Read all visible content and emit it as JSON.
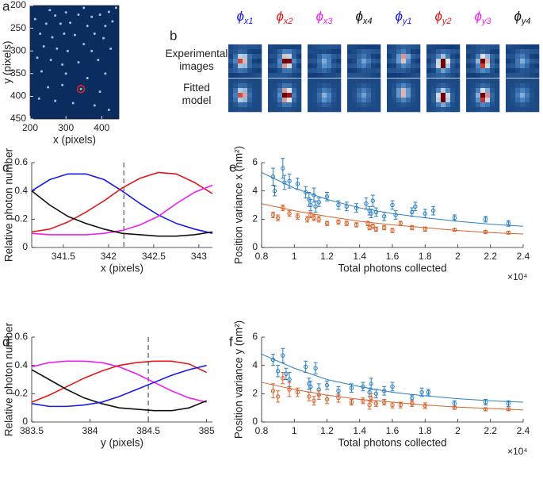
{
  "chart_data": [
    {
      "type": "image",
      "label": "a",
      "xlabel": "x (pixels)",
      "ylabel": "y (pixels)",
      "xlim": [
        200,
        448
      ],
      "ylim": [
        450,
        200
      ],
      "xticks": [
        200,
        300,
        400
      ],
      "yticks": [
        200,
        250,
        300,
        350,
        400,
        450
      ],
      "background": "#0b2c5f",
      "spot_color": "#a8d8f0",
      "spots": {
        "x": [
          255,
          270,
          300,
          335,
          350,
          372,
          395,
          420,
          440,
          214,
          245,
          285,
          312,
          360,
          410,
          430,
          228,
          262,
          295,
          325,
          380,
          405,
          238,
          275,
          305,
          350,
          372,
          425,
          220,
          258,
          290,
          335,
          390,
          232,
          300,
          360,
          410,
          250,
          290,
          342,
          395,
          225,
          270,
          320,
          380,
          420
        ],
        "y": [
          210,
          222,
          215,
          220,
          205,
          225,
          220,
          214,
          205,
          230,
          240,
          240,
          238,
          245,
          245,
          235,
          262,
          270,
          262,
          265,
          262,
          272,
          290,
          295,
          300,
          285,
          300,
          295,
          315,
          320,
          330,
          325,
          320,
          345,
          350,
          360,
          350,
          380,
          375,
          384,
          390,
          405,
          410,
          415,
          420,
          430
        ]
      },
      "marker": {
        "x": 342,
        "y": 384,
        "color": "#ff2020"
      }
    },
    {
      "type": "image-grid",
      "label": "b",
      "columns": [
        {
          "symbol": "ϕ",
          "sub": "x1",
          "color": "#1a1ae6"
        },
        {
          "symbol": "ϕ",
          "sub": "x2",
          "color": "#e01a1a"
        },
        {
          "symbol": "ϕ",
          "sub": "x3",
          "color": "#ee20ee"
        },
        {
          "symbol": "ϕ",
          "sub": "x4",
          "color": "#111111"
        },
        {
          "symbol": "ϕ",
          "sub": "y1",
          "color": "#1a1ae6"
        },
        {
          "symbol": "ϕ",
          "sub": "y2",
          "color": "#e01a1a"
        },
        {
          "symbol": "ϕ",
          "sub": "y3",
          "color": "#ee20ee"
        },
        {
          "symbol": "ϕ",
          "sub": "y4",
          "color": "#111111"
        }
      ],
      "rows": [
        [
          "Experimental",
          "images"
        ],
        [
          "Fitted",
          "model"
        ]
      ]
    },
    {
      "type": "line",
      "label": "c",
      "xlabel": "x (pixels)",
      "ylabel": "Relative photon number",
      "xlim": [
        341.15,
        343.15
      ],
      "ylim": [
        0,
        0.6
      ],
      "xticks": [
        341.5,
        342,
        342.5,
        343
      ],
      "yticks": [
        0,
        0.2,
        0.4,
        0.6
      ],
      "vline": 342.17,
      "x": [
        341.15,
        341.35,
        341.55,
        341.75,
        341.95,
        342.15,
        342.35,
        342.55,
        342.75,
        342.95,
        343.15
      ],
      "series": [
        {
          "color": "#1a1ae6",
          "values": [
            0.4,
            0.48,
            0.52,
            0.52,
            0.48,
            0.4,
            0.31,
            0.23,
            0.17,
            0.13,
            0.1
          ]
        },
        {
          "color": "#e01a1a",
          "values": [
            0.11,
            0.13,
            0.18,
            0.25,
            0.33,
            0.42,
            0.49,
            0.53,
            0.52,
            0.46,
            0.38
          ]
        },
        {
          "color": "#ee20ee",
          "values": [
            0.1,
            0.09,
            0.09,
            0.09,
            0.1,
            0.12,
            0.16,
            0.22,
            0.31,
            0.39,
            0.44
          ]
        },
        {
          "color": "#111111",
          "values": [
            0.4,
            0.3,
            0.22,
            0.17,
            0.13,
            0.1,
            0.09,
            0.08,
            0.08,
            0.09,
            0.11
          ]
        }
      ]
    },
    {
      "type": "line",
      "label": "d",
      "xlabel": "y (pixels)",
      "ylabel": "Relative photon number",
      "xlim": [
        383.5,
        385.05
      ],
      "ylim": [
        0,
        0.6
      ],
      "xticks": [
        383.5,
        384,
        384.5,
        385
      ],
      "yticks": [
        0,
        0.2,
        0.4,
        0.6
      ],
      "vline": 384.5,
      "x": [
        383.5,
        383.65,
        383.8,
        383.95,
        384.1,
        384.25,
        384.4,
        384.55,
        384.7,
        384.85,
        385.0
      ],
      "series": [
        {
          "color": "#ee20ee",
          "values": [
            0.39,
            0.42,
            0.43,
            0.43,
            0.42,
            0.39,
            0.34,
            0.28,
            0.22,
            0.17,
            0.14
          ]
        },
        {
          "color": "#e01a1a",
          "values": [
            0.14,
            0.19,
            0.25,
            0.31,
            0.36,
            0.4,
            0.42,
            0.43,
            0.43,
            0.41,
            0.35
          ]
        },
        {
          "color": "#111111",
          "values": [
            0.37,
            0.3,
            0.23,
            0.17,
            0.13,
            0.1,
            0.09,
            0.08,
            0.08,
            0.1,
            0.15
          ]
        },
        {
          "color": "#1a1ae6",
          "values": [
            0.13,
            0.11,
            0.11,
            0.12,
            0.14,
            0.18,
            0.23,
            0.28,
            0.33,
            0.37,
            0.4
          ]
        }
      ]
    },
    {
      "type": "scatter",
      "label": "e",
      "xlabel": "Total photons collected",
      "ylabel": "Position variance x (nm²)",
      "x_multiplier": "×10⁴",
      "xlim": [
        0.8,
        2.4
      ],
      "ylim": [
        0,
        6
      ],
      "xticks": [
        0.8,
        1,
        1.2,
        1.4,
        1.6,
        1.8,
        2,
        2.2,
        2.4
      ],
      "yticks": [
        0,
        2,
        4,
        6
      ],
      "series": [
        {
          "mode": "points",
          "color": "#2a7fc0",
          "x": [
            0.87,
            0.93,
            0.88,
            0.94,
            0.97,
            1.02,
            1.07,
            1.09,
            1.1,
            1.12,
            1.13,
            1.15,
            1.2,
            1.27,
            1.32,
            1.38,
            1.44,
            1.46,
            1.47,
            1.48,
            1.5,
            1.55,
            1.6,
            1.62,
            1.72,
            1.74,
            1.8,
            1.85,
            1.98,
            2.17,
            2.31
          ],
          "values": [
            5.0,
            5.6,
            4.0,
            4.6,
            4.7,
            4.5,
            3.9,
            3.4,
            3.0,
            3.7,
            2.9,
            3.2,
            3.6,
            3.0,
            2.9,
            2.8,
            3.1,
            2.6,
            2.4,
            3.3,
            2.5,
            2.2,
            3.0,
            2.3,
            2.5,
            2.9,
            2.4,
            2.6,
            2.1,
            2.0,
            1.7
          ],
          "errors": [
            0.6,
            0.7,
            0.35,
            0.5,
            0.5,
            0.4,
            0.4,
            0.5,
            0.4,
            0.5,
            0.4,
            0.3,
            0.3,
            0.3,
            0.3,
            0.3,
            0.4,
            0.3,
            0.3,
            0.4,
            0.3,
            0.3,
            0.3,
            0.3,
            0.3,
            0.3,
            0.3,
            0.3,
            0.2,
            0.2,
            0.2
          ]
        },
        {
          "mode": "points",
          "color": "#d9622b",
          "x": [
            0.87,
            0.93,
            0.9,
            0.97,
            1.02,
            1.08,
            1.1,
            1.12,
            1.15,
            1.2,
            1.27,
            1.32,
            1.38,
            1.45,
            1.46,
            1.48,
            1.5,
            1.55,
            1.6,
            1.65,
            1.72,
            1.8,
            1.98,
            2.17,
            2.31
          ],
          "values": [
            2.3,
            2.8,
            2.1,
            2.4,
            2.2,
            2.0,
            2.3,
            2.1,
            2.0,
            1.7,
            1.8,
            1.7,
            1.6,
            1.7,
            1.4,
            1.5,
            1.3,
            1.4,
            1.2,
            1.7,
            1.4,
            1.3,
            1.25,
            1.1,
            1.05
          ],
          "errors": [
            0.2,
            0.2,
            0.2,
            0.2,
            0.2,
            0.2,
            0.2,
            0.2,
            0.2,
            0.15,
            0.15,
            0.15,
            0.15,
            0.15,
            0.15,
            0.15,
            0.15,
            0.15,
            0.15,
            0.15,
            0.15,
            0.15,
            0.1,
            0.1,
            0.1
          ]
        },
        {
          "mode": "line",
          "color": "#2a7fc0",
          "x": [
            0.8,
            1,
            1.2,
            1.4,
            1.6,
            1.8,
            2,
            2.2,
            2.4
          ],
          "values": [
            5.3,
            4.2,
            3.4,
            2.8,
            2.4,
            2.1,
            1.85,
            1.65,
            1.5
          ]
        },
        {
          "mode": "line",
          "color": "#d9622b",
          "x": [
            0.8,
            1,
            1.2,
            1.4,
            1.6,
            1.8,
            2,
            2.2,
            2.4
          ],
          "values": [
            3.1,
            2.6,
            2.2,
            1.85,
            1.6,
            1.4,
            1.2,
            1.05,
            0.95
          ]
        }
      ]
    },
    {
      "type": "scatter",
      "label": "f",
      "xlabel": "Total photons collected",
      "ylabel": "Position variance y (nm²)",
      "x_multiplier": "×10⁴",
      "xlim": [
        0.8,
        2.4
      ],
      "ylim": [
        0,
        6
      ],
      "xticks": [
        0.8,
        1,
        1.2,
        1.4,
        1.6,
        1.8,
        2,
        2.2,
        2.4
      ],
      "yticks": [
        0,
        2,
        4,
        6
      ],
      "series": [
        {
          "mode": "points",
          "color": "#2a7fc0",
          "x": [
            0.87,
            0.93,
            0.9,
            0.95,
            0.97,
            1.07,
            1.09,
            1.1,
            1.13,
            1.15,
            1.2,
            1.27,
            1.35,
            1.42,
            1.46,
            1.47,
            1.5,
            1.55,
            1.6,
            1.72,
            1.78,
            1.82,
            1.98,
            2.17,
            2.31
          ],
          "values": [
            4.4,
            4.7,
            3.6,
            3.4,
            3.0,
            3.9,
            2.7,
            2.5,
            3.8,
            2.3,
            2.6,
            2.2,
            2.4,
            2.5,
            2.1,
            2.7,
            2.0,
            2.2,
            2.5,
            1.7,
            2.1,
            2.1,
            1.3,
            1.4,
            1.3
          ],
          "errors": [
            0.4,
            0.5,
            0.4,
            0.4,
            0.5,
            0.4,
            0.4,
            0.4,
            0.4,
            0.4,
            0.3,
            0.3,
            0.3,
            0.3,
            0.3,
            0.4,
            0.3,
            0.3,
            0.3,
            0.2,
            0.3,
            0.2,
            0.2,
            0.2,
            0.2
          ]
        },
        {
          "mode": "points",
          "color": "#d9622b",
          "x": [
            0.87,
            0.9,
            0.93,
            0.97,
            1.02,
            1.09,
            1.12,
            1.15,
            1.2,
            1.27,
            1.35,
            1.42,
            1.46,
            1.47,
            1.5,
            1.55,
            1.6,
            1.65,
            1.72,
            1.8,
            1.98,
            2.17,
            2.31
          ],
          "values": [
            2.2,
            1.8,
            3.1,
            2.3,
            2.1,
            1.8,
            1.5,
            1.9,
            1.6,
            1.7,
            1.4,
            1.5,
            1.2,
            1.7,
            1.3,
            1.4,
            1.2,
            1.2,
            1.3,
            1.15,
            1.0,
            0.9,
            0.9
          ],
          "errors": [
            0.5,
            0.4,
            0.4,
            0.5,
            0.3,
            0.3,
            0.3,
            0.3,
            0.3,
            0.3,
            0.2,
            0.2,
            0.3,
            0.3,
            0.2,
            0.2,
            0.2,
            0.2,
            0.2,
            0.2,
            0.1,
            0.1,
            0.1
          ]
        },
        {
          "mode": "line",
          "color": "#2a7fc0",
          "x": [
            0.8,
            1,
            1.2,
            1.4,
            1.6,
            1.8,
            2,
            2.2,
            2.4
          ],
          "values": [
            4.8,
            3.8,
            3.0,
            2.5,
            2.1,
            1.85,
            1.65,
            1.5,
            1.4
          ]
        },
        {
          "mode": "line",
          "color": "#d9622b",
          "x": [
            0.8,
            1,
            1.2,
            1.4,
            1.6,
            1.8,
            2,
            2.2,
            2.4
          ],
          "values": [
            2.8,
            2.3,
            1.9,
            1.6,
            1.4,
            1.2,
            1.05,
            0.95,
            0.85
          ]
        }
      ]
    }
  ]
}
